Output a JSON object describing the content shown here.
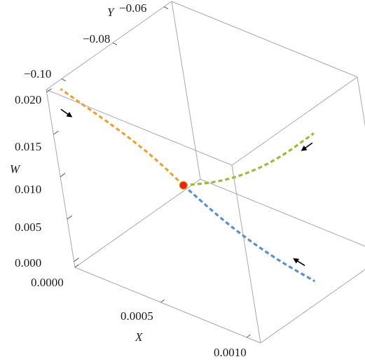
{
  "chart_data": {
    "type": "line",
    "projection": "3d",
    "axes": {
      "x": {
        "label": "X",
        "ticks": [
          "0.0000",
          "0.0005",
          "0.0010"
        ],
        "tick_values": [
          0,
          0.0005,
          0.001
        ],
        "range": [
          0,
          0.00108
        ]
      },
      "y": {
        "label": "Y",
        "ticks": [
          "−0.10",
          "−0.08",
          "−0.06"
        ],
        "tick_values": [
          -0.1,
          -0.08,
          -0.06
        ],
        "range": [
          -0.106,
          -0.057
        ]
      },
      "w": {
        "label": "W",
        "ticks": [
          "0.000",
          "0.005",
          "0.010",
          "0.015",
          "0.020"
        ],
        "tick_values": [
          0,
          0.005,
          0.01,
          0.015,
          0.02
        ],
        "range": [
          -0.0007,
          0.0203
        ]
      }
    },
    "box": true,
    "grid": false,
    "legend": "none",
    "equilibrium_point": {
      "x": 0.00035,
      "y": -0.083,
      "w": 0.007,
      "color": "#e8231a"
    },
    "series": [
      {
        "color": "#e8a33a",
        "style": "dashed",
        "direction": "toward-point",
        "points": [
          {
            "x": 0.00035,
            "y": -0.083,
            "w": 0.007
          },
          {
            "x": 0.00027,
            "y": -0.087,
            "w": 0.0104
          },
          {
            "x": 0.00018,
            "y": -0.092,
            "w": 0.0138
          },
          {
            "x": 9e-05,
            "y": -0.097,
            "w": 0.0168
          },
          {
            "x": 1e-05,
            "y": -0.1015,
            "w": 0.0195
          }
        ]
      },
      {
        "color": "#5b8fc9",
        "style": "dashed",
        "direction": "toward-point",
        "points": [
          {
            "x": 0.00035,
            "y": -0.083,
            "w": 0.007
          },
          {
            "x": 0.00052,
            "y": -0.082,
            "w": 0.0045
          },
          {
            "x": 0.00068,
            "y": -0.081,
            "w": 0.0026
          },
          {
            "x": 0.00084,
            "y": -0.08,
            "w": 0.0012
          },
          {
            "x": 0.001,
            "y": -0.079,
            "w": 0.0002
          }
        ]
      },
      {
        "color": "#9bbb3f",
        "style": "dashed",
        "direction": "toward-point",
        "points": [
          {
            "x": 0.00035,
            "y": -0.083,
            "w": 0.007
          },
          {
            "x": 0.00045,
            "y": -0.077,
            "w": 0.0069
          },
          {
            "x": 0.00055,
            "y": -0.071,
            "w": 0.0075
          },
          {
            "x": 0.00066,
            "y": -0.065,
            "w": 0.009
          },
          {
            "x": 0.00077,
            "y": -0.058,
            "w": 0.0113
          }
        ]
      }
    ],
    "direction_arrows": [
      {
        "series": 0,
        "at": {
          "x": 4e-05,
          "y": -0.1,
          "w": 0.0175
        }
      },
      {
        "series": 1,
        "at": {
          "x": 0.00088,
          "y": -0.079,
          "w": 0.0005
        }
      },
      {
        "series": 2,
        "at": {
          "x": 0.00074,
          "y": -0.058,
          "w": 0.0085
        }
      }
    ]
  }
}
